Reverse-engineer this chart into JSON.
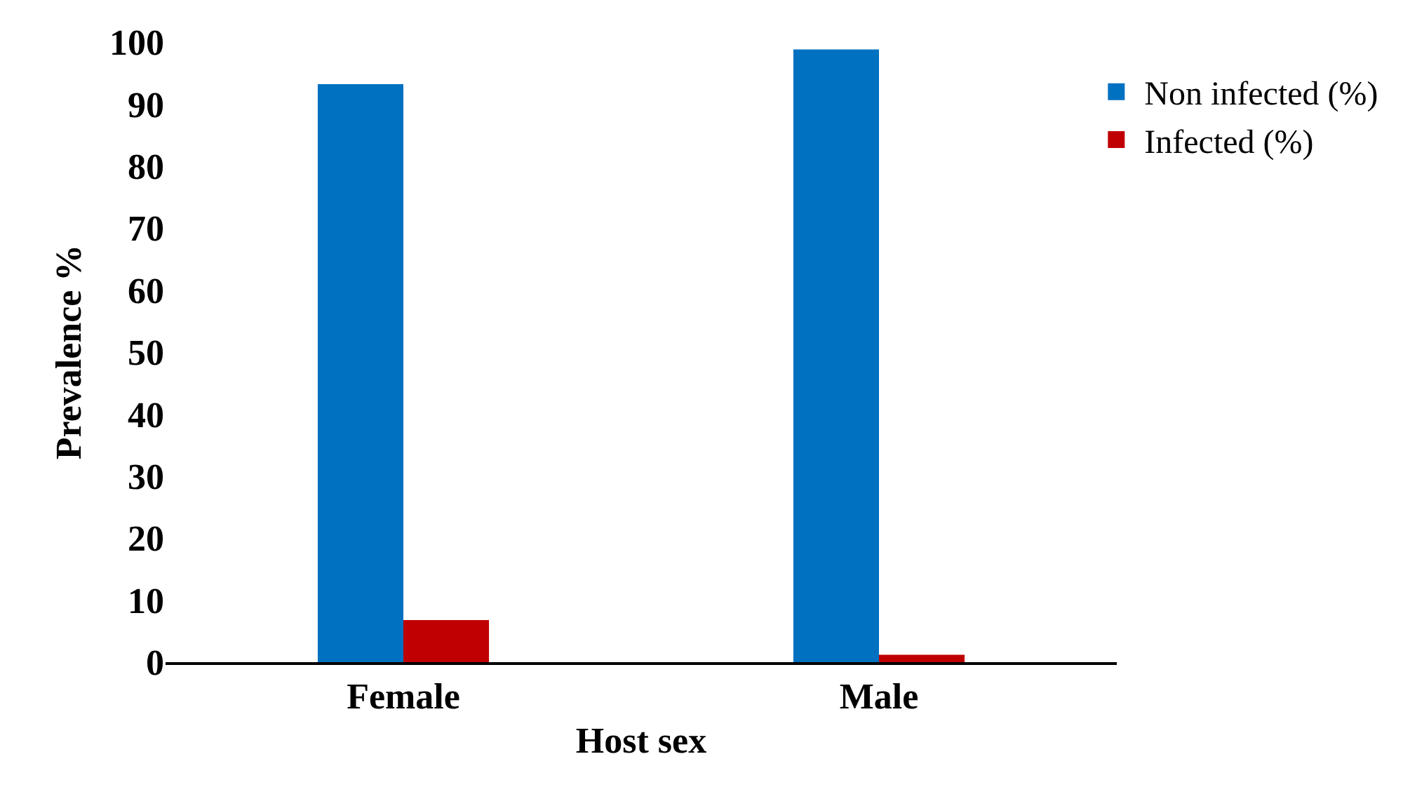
{
  "chart_data": {
    "type": "bar",
    "xlabel": "Host sex",
    "ylabel": "Prevalence %",
    "categories": [
      "Female",
      "Male"
    ],
    "series": [
      {
        "name": "Non infected (%)",
        "color": "#0070c0",
        "values": [
          93.2,
          98.8
        ]
      },
      {
        "name": "Infected (%)",
        "color": "#c00000",
        "values": [
          6.8,
          1.2
        ]
      }
    ],
    "ylim": [
      0,
      100
    ],
    "yticks": [
      0,
      10,
      20,
      30,
      40,
      50,
      60,
      70,
      80,
      90,
      100
    ],
    "grid": false,
    "legend": "top right"
  }
}
